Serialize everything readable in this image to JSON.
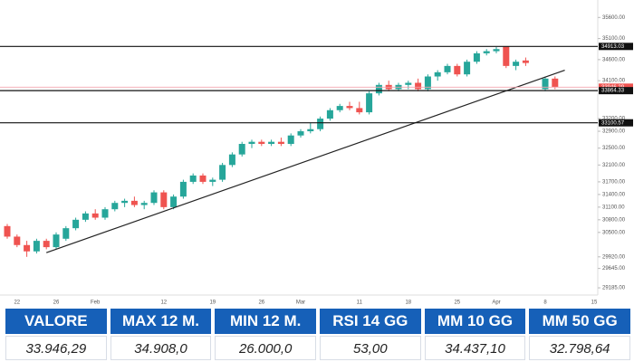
{
  "chart_data": {
    "type": "candlestick",
    "categories": [
      null,
      "22",
      null,
      null,
      null,
      "26",
      null,
      null,
      null,
      "Feb",
      null,
      null,
      null,
      null,
      null,
      null,
      "12",
      null,
      null,
      null,
      null,
      "19",
      null,
      null,
      null,
      null,
      "26",
      null,
      null,
      null,
      "Mar",
      null,
      null,
      null,
      null,
      null,
      "11",
      null,
      null,
      null,
      null,
      "18",
      null,
      null,
      null,
      null,
      "25",
      null,
      null,
      null,
      "Apr",
      null,
      null,
      null,
      null,
      "8",
      null,
      null,
      null,
      null,
      "15"
    ],
    "open": [
      30650,
      30400,
      30200,
      30050,
      30300,
      30150,
      30350,
      30600,
      30800,
      30950,
      30850,
      31050,
      31200,
      31250,
      31150,
      31200,
      31450,
      31100,
      31350,
      31700,
      31850,
      31700,
      31750,
      32100,
      32350,
      32600,
      32650,
      32600,
      32650,
      32600,
      32800,
      32900,
      32950,
      33200,
      33400,
      33500,
      33450,
      33350,
      33800,
      34000,
      33900,
      34000,
      34050,
      33900,
      34200,
      34300,
      34450,
      34250,
      34550,
      34750,
      34800,
      34908,
      34450,
      34580,
      null,
      33900,
      34150,
      null,
      null,
      null,
      null
    ],
    "high": [
      30700,
      30450,
      30300,
      30350,
      30350,
      30500,
      30650,
      30850,
      31000,
      31050,
      31100,
      31250,
      31300,
      31350,
      31250,
      31500,
      31500,
      31400,
      31750,
      31900,
      31900,
      31800,
      32150,
      32400,
      32650,
      32700,
      32700,
      32700,
      32750,
      32850,
      32950,
      33100,
      33250,
      33450,
      33550,
      33600,
      33600,
      33850,
      34050,
      34100,
      34050,
      34100,
      34150,
      34250,
      34350,
      34500,
      34500,
      34600,
      34800,
      34850,
      34900,
      34908,
      34600,
      34650,
      null,
      34200,
      34200,
      null,
      null,
      null,
      null
    ],
    "low": [
      30350,
      30150,
      29920,
      30000,
      30100,
      30100,
      30300,
      30550,
      30750,
      30800,
      30800,
      31000,
      31100,
      31100,
      31050,
      31150,
      31050,
      31050,
      31300,
      31650,
      31650,
      31600,
      31700,
      32050,
      32300,
      32500,
      32550,
      32550,
      32550,
      32550,
      32750,
      32850,
      32900,
      33150,
      33350,
      33400,
      33300,
      33300,
      33750,
      33850,
      33850,
      33900,
      33850,
      33850,
      34100,
      34250,
      34200,
      34200,
      34500,
      34700,
      34750,
      34400,
      34350,
      34450,
      null,
      33850,
      33900,
      null,
      null,
      null,
      null
    ],
    "close": [
      30400,
      30200,
      30050,
      30300,
      30150,
      30450,
      30600,
      30800,
      30950,
      30850,
      31050,
      31200,
      31250,
      31150,
      31200,
      31450,
      31100,
      31350,
      31700,
      31850,
      31700,
      31750,
      32100,
      32350,
      32600,
      32650,
      32600,
      32650,
      32600,
      32800,
      32900,
      32950,
      33200,
      33400,
      33500,
      33450,
      33350,
      33800,
      34000,
      33900,
      34000,
      34050,
      33900,
      34200,
      34300,
      34450,
      34250,
      34550,
      34750,
      34800,
      34850,
      34450,
      34550,
      34520,
      null,
      34150,
      33946.29,
      null,
      null,
      null,
      null
    ],
    "up_color": "#26a69a",
    "down_color": "#ef5350",
    "ylim": [
      29100,
      35800
    ],
    "yticks": [
      {
        "value": 35600,
        "label": "35600.00"
      },
      {
        "value": 35100,
        "label": "35100.00"
      },
      {
        "value": 34600,
        "label": "34600.00"
      },
      {
        "value": 34100,
        "label": "34100.00"
      },
      {
        "value": 33200,
        "label": "33200.00"
      },
      {
        "value": 32900,
        "label": "32900.00"
      },
      {
        "value": 32500,
        "label": "32500.00"
      },
      {
        "value": 32100,
        "label": "32100.00"
      },
      {
        "value": 31700,
        "label": "31700.00"
      },
      {
        "value": 31400,
        "label": "31400.00"
      },
      {
        "value": 31100,
        "label": "31100.00"
      },
      {
        "value": 30800,
        "label": "30800.00"
      },
      {
        "value": 30500,
        "label": "30500.00"
      },
      {
        "value": 29920,
        "label": "29920.00"
      },
      {
        "value": 29645,
        "label": "29645.00"
      },
      {
        "value": 29185,
        "label": "29185.00"
      }
    ],
    "levels": [
      {
        "value": 34913.03,
        "color": "#111111"
      },
      {
        "value": 33946.29,
        "color": "#ef5350"
      },
      {
        "value": 33864.33,
        "color": "#111111"
      },
      {
        "value": 33100.57,
        "color": "#111111"
      }
    ],
    "trendline": {
      "x": [
        4,
        57
      ],
      "y": [
        30020,
        34350
      ],
      "color": "#222222"
    }
  },
  "table": {
    "headers": [
      "VALORE",
      "MAX 12 M.",
      "MIN 12 M.",
      "RSI 14 GG",
      "MM 10 GG",
      "MM 50 GG"
    ],
    "rows": [
      [
        "33.946,29",
        "34.908,0",
        "26.000,0",
        "53,00",
        "34.437,10",
        "32.798,64"
      ]
    ]
  }
}
